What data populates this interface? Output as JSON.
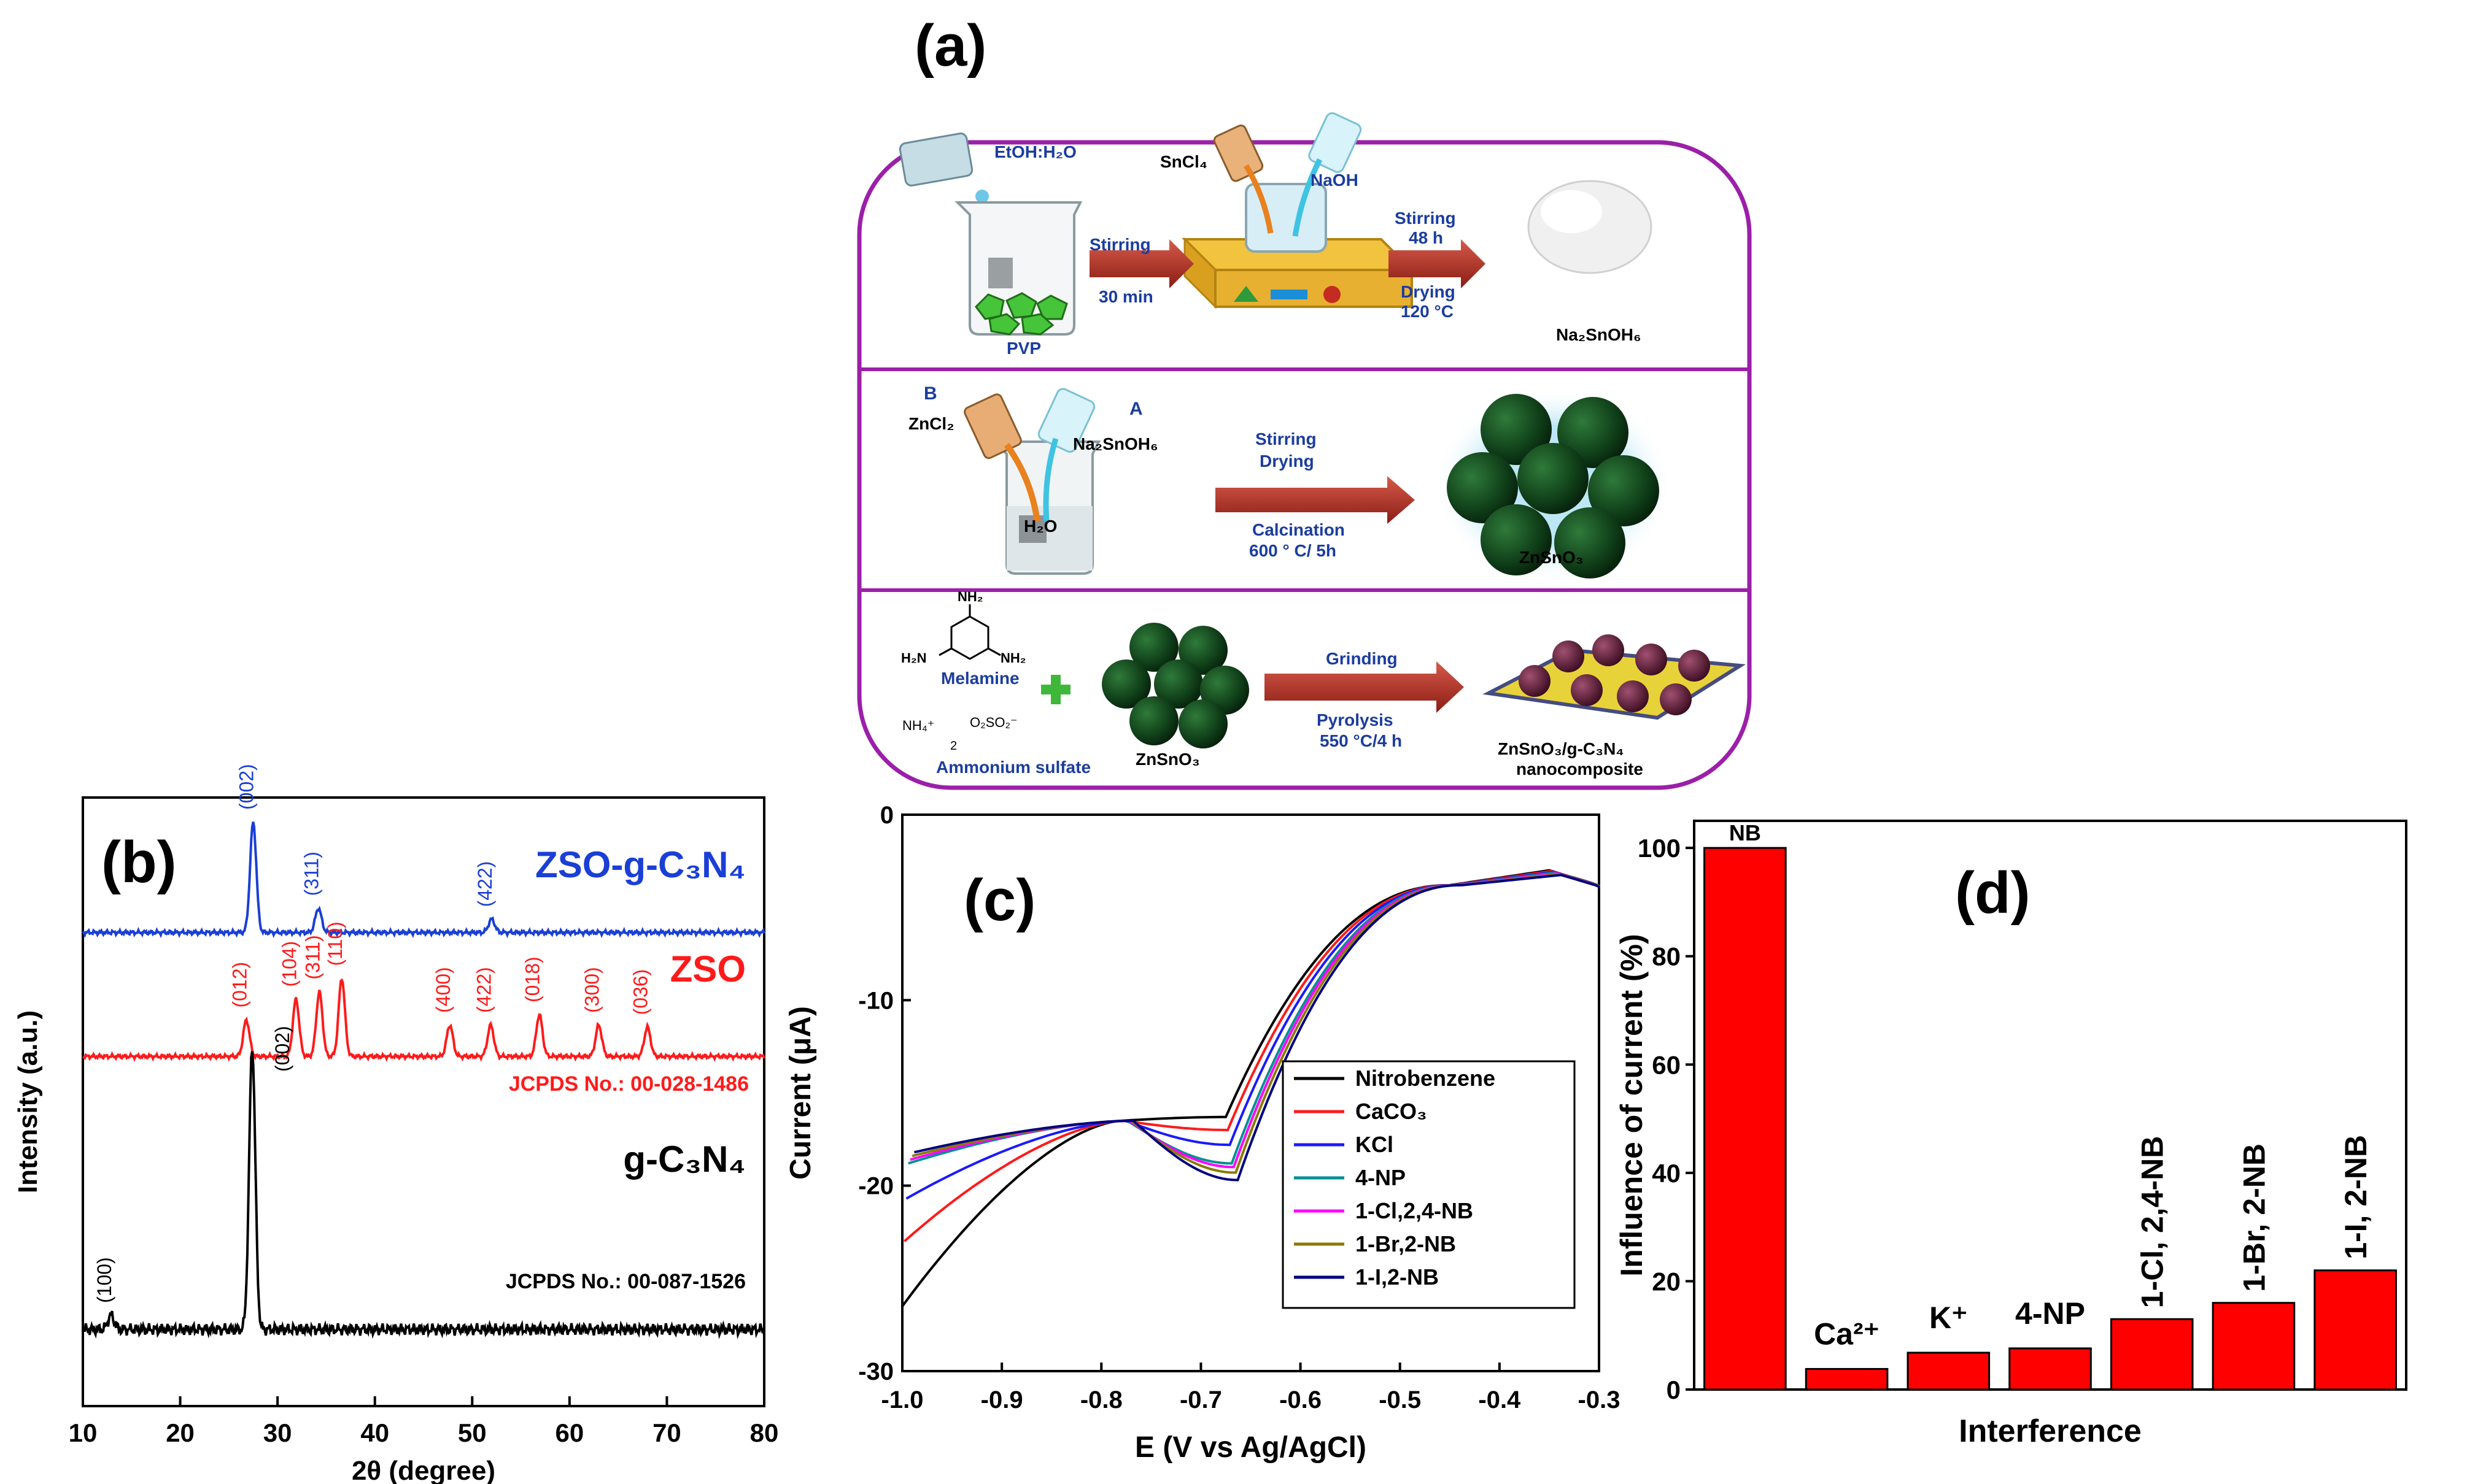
{
  "panel_a": {
    "label": "(a)",
    "step1": {
      "solvent": "EtOH:H₂O",
      "polymer": "PVP",
      "arrow1_top": "Stirring",
      "arrow1_bottom": "30 min",
      "reagent1": "SnCl₄",
      "reagent2": "NaOH",
      "arrow2_top": "Stirring",
      "arrow2_mid": "48 h",
      "arrow2_bottom1": "Drying",
      "arrow2_bottom2": "120 °C",
      "product": "Na₂SnOH₆"
    },
    "step2": {
      "label_b": "B",
      "label_a": "A",
      "reagent1": "ZnCl₂",
      "reagent2": "Na₂SnOH₆",
      "solvent": "H₂O",
      "arrow_top1": "Stirring",
      "arrow_top2": "Drying",
      "arrow_bottom1": "Calcination",
      "arrow_bottom2": "600 ° C/ 5h",
      "product": "ZnSnO₃"
    },
    "step3": {
      "melamine": "Melamine",
      "nh2": "NH₂",
      "h2n": "H₂N",
      "ammonium": "Ammonium sulfate",
      "nh4": "NH₄⁺",
      "so4": "O₂SO₂⁻",
      "sub2": "2",
      "precursor": "ZnSnO₃",
      "arrow_top": "Grinding",
      "arrow_bottom1": "Pyrolysis",
      "arrow_bottom2": "550 °C/4 h",
      "product1": "ZnSnO₃/g-C₃N₄",
      "product2": "nanocomposite"
    }
  },
  "chart_data": [
    {
      "panel": "(b)",
      "type": "line",
      "xlabel": "2θ  (degree)",
      "ylabel": "Intensity (a.u.)",
      "xlim": [
        10,
        80
      ],
      "xticks": [
        "10",
        "20",
        "30",
        "40",
        "50",
        "60",
        "70",
        "80"
      ],
      "series": [
        {
          "name": "ZSO-g-C₃N₄",
          "color": "#1a3fd6",
          "peaks": [
            {
              "x": 27.5,
              "h": 1.0,
              "label": "(002)"
            },
            {
              "x": 34.2,
              "h": 0.22,
              "label": "(311)"
            },
            {
              "x": 52.0,
              "h": 0.12,
              "label": "(422)"
            }
          ]
        },
        {
          "name": "ZSO",
          "color": "#ff1a1a",
          "reference": "JCPDS No.: 00-028-1486",
          "peaks": [
            {
              "x": 26.8,
              "h": 0.35,
              "label": "(012)"
            },
            {
              "x": 31.9,
              "h": 0.55,
              "label": "(104)"
            },
            {
              "x": 34.3,
              "h": 0.62,
              "label": "(311)"
            },
            {
              "x": 36.6,
              "h": 0.75,
              "label": "(110)"
            },
            {
              "x": 47.7,
              "h": 0.3,
              "label": "(400)"
            },
            {
              "x": 51.9,
              "h": 0.3,
              "label": "(422)"
            },
            {
              "x": 56.9,
              "h": 0.4,
              "label": "(018)"
            },
            {
              "x": 63.0,
              "h": 0.3,
              "label": "(300)"
            },
            {
              "x": 68.0,
              "h": 0.28,
              "label": "(036)"
            }
          ]
        },
        {
          "name": "g-C₃N₄",
          "color": "#000000",
          "reference": "JCPDS No.: 00-087-1526",
          "peaks": [
            {
              "x": 12.9,
              "h": 0.05,
              "label": "(100)"
            },
            {
              "x": 27.4,
              "h": 1.0,
              "label": "(002)"
            }
          ]
        }
      ]
    },
    {
      "panel": "(c)",
      "type": "line",
      "xlabel": "E (V vs Ag/AgCl)",
      "ylabel": "Current (μA)",
      "xlim": [
        -1.0,
        -0.3
      ],
      "ylim": [
        -30,
        0
      ],
      "xticks": [
        "-1.0",
        "-0.9",
        "-0.8",
        "-0.7",
        "-0.6",
        "-0.5",
        "-0.4",
        "-0.3"
      ],
      "yticks": [
        "0",
        "-10",
        "-20",
        "-30"
      ],
      "series": [
        {
          "name": "Nitrobenzene",
          "color": "#000000",
          "y_at_-1.0": -26.5,
          "peak_y": -16.3
        },
        {
          "name": "CaCO₃",
          "color": "#ff1a1a",
          "y_at_-1.0": -23.0,
          "peak_y": -17.0
        },
        {
          "name": "KCl",
          "color": "#1a1aff",
          "y_at_-1.0": -20.7,
          "peak_y": -17.8
        },
        {
          "name": "4-NP",
          "color": "#009090",
          "y_at_-1.0": -18.8,
          "peak_y": -18.8
        },
        {
          "name": "1-Cl,2,4-NB",
          "color": "#ff00ff",
          "y_at_-1.0": -18.6,
          "peak_y": -19.0
        },
        {
          "name": "1-Br,2-NB",
          "color": "#8a7a00",
          "y_at_-1.0": -18.4,
          "peak_y": -19.3
        },
        {
          "name": "1-I,2-NB",
          "color": "#000080",
          "y_at_-1.0": -18.2,
          "peak_y": -19.7
        }
      ]
    },
    {
      "panel": "(d)",
      "type": "bar",
      "xlabel": "Interference",
      "ylabel": "Influence of current (%)",
      "ylim": [
        0,
        105
      ],
      "yticks": [
        "0",
        "20",
        "40",
        "60",
        "80",
        "100"
      ],
      "categories": [
        "NB",
        "Ca²⁺",
        "K⁺",
        "4-NP",
        "1-Cl, 2,4-NB",
        "1-Br, 2-NB",
        "1-I, 2-NB"
      ],
      "values": [
        100,
        3.8,
        6.8,
        7.6,
        13,
        16,
        22
      ],
      "color": "#ff0000"
    }
  ]
}
